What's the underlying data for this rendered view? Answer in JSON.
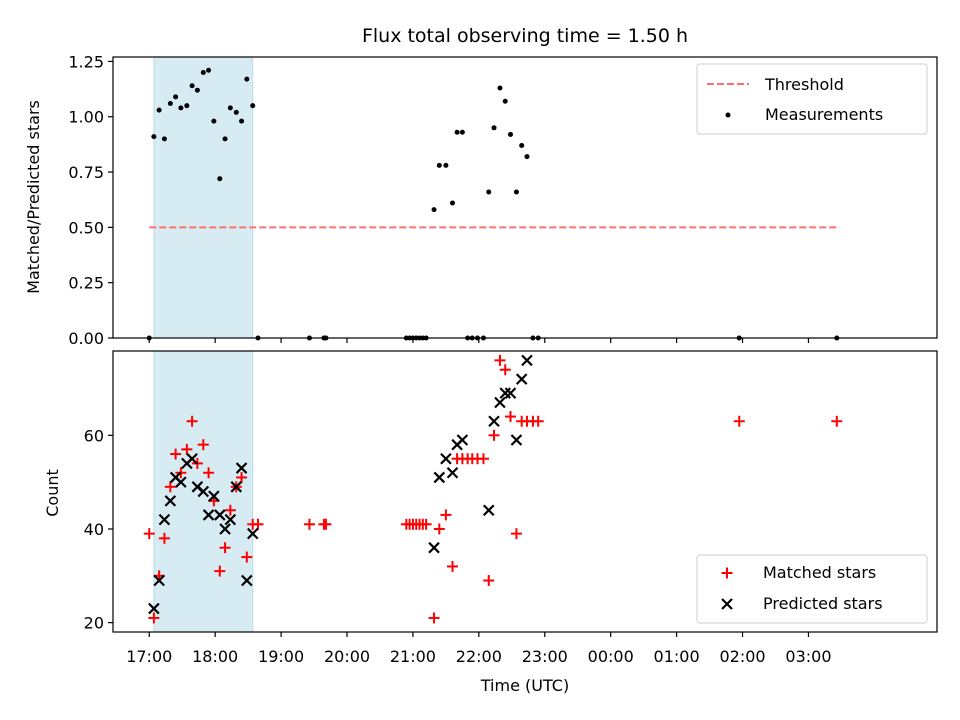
{
  "figure_title": "Flux total observing time = 1.50 h",
  "colors": {
    "threshold": "#ff6f6f",
    "measurements": "#000000",
    "matched": "#ff0000",
    "predicted": "#000000",
    "span": "#add8e6"
  },
  "chart_data": [
    {
      "type": "scatter",
      "title": "Flux total observing time = 1.50 h",
      "xlabel": "",
      "ylabel": "Matched/Predicted stars",
      "ylim": [
        0,
        1.27
      ],
      "yticks": [
        "0.00",
        "0.25",
        "0.50",
        "0.75",
        "1.00",
        "1.25"
      ],
      "ytick_values": [
        0,
        0.25,
        0.5,
        0.75,
        1.0,
        1.25
      ],
      "xlim_hours": [
        16.45,
        28.95
      ],
      "grid": false,
      "legend_position": "upper right",
      "shaded_span_hours": [
        17.07,
        18.57
      ],
      "threshold": {
        "name": "Threshold",
        "value": 0.5,
        "x_hours": [
          17.0,
          27.47
        ]
      },
      "series": [
        {
          "name": "Measurements",
          "marker": "dot",
          "x_hours": [
            17.0,
            17.07,
            17.15,
            17.23,
            17.32,
            17.4,
            17.48,
            17.57,
            17.65,
            17.73,
            17.82,
            17.9,
            17.98,
            18.07,
            18.15,
            18.23,
            18.32,
            18.4,
            18.48,
            18.57,
            18.65,
            19.43,
            19.65,
            19.68,
            20.9,
            20.95,
            21.0,
            21.05,
            21.1,
            21.15,
            21.2,
            21.32,
            21.4,
            21.5,
            21.6,
            21.67,
            21.75,
            21.83,
            21.9,
            21.98,
            22.07,
            22.15,
            22.23,
            22.32,
            22.4,
            22.48,
            22.57,
            22.65,
            22.73,
            22.82,
            22.9,
            25.95,
            27.43
          ],
          "y": [
            0.0,
            0.91,
            1.03,
            0.9,
            1.06,
            1.09,
            1.04,
            1.05,
            1.14,
            1.12,
            1.2,
            1.21,
            0.98,
            0.72,
            0.9,
            1.04,
            1.02,
            0.98,
            1.17,
            1.05,
            0.0,
            0.0,
            0.0,
            0.0,
            0.0,
            0.0,
            0.0,
            0.0,
            0.0,
            0.0,
            0.0,
            0.58,
            0.78,
            0.78,
            0.61,
            0.93,
            0.93,
            0.0,
            0.0,
            0.0,
            0.0,
            0.66,
            0.95,
            1.13,
            1.07,
            0.92,
            0.66,
            0.87,
            0.82,
            0.0,
            0.0,
            0.0,
            0.0
          ]
        }
      ]
    },
    {
      "type": "scatter",
      "xlabel": "Time (UTC)",
      "ylabel": "Count",
      "ylim": [
        18,
        78
      ],
      "yticks": [
        "20",
        "40",
        "60"
      ],
      "ytick_values": [
        20,
        40,
        60
      ],
      "xlim_hours": [
        16.45,
        28.95
      ],
      "xticks": [
        "17:00",
        "18:00",
        "19:00",
        "20:00",
        "21:00",
        "22:00",
        "23:00",
        "00:00",
        "01:00",
        "02:00",
        "03:00"
      ],
      "xtick_hours": [
        17,
        18,
        19,
        20,
        21,
        22,
        23,
        24,
        25,
        26,
        27
      ],
      "grid": false,
      "legend_position": "lower right",
      "shaded_span_hours": [
        17.07,
        18.57
      ],
      "series": [
        {
          "name": "Matched stars",
          "marker": "plus",
          "x_hours": [
            17.0,
            17.07,
            17.15,
            17.23,
            17.32,
            17.4,
            17.48,
            17.57,
            17.65,
            17.73,
            17.82,
            17.9,
            17.98,
            18.07,
            18.15,
            18.23,
            18.32,
            18.4,
            18.48,
            18.57,
            18.65,
            19.43,
            19.65,
            19.68,
            20.9,
            20.95,
            21.0,
            21.05,
            21.1,
            21.15,
            21.2,
            21.32,
            21.4,
            21.5,
            21.6,
            21.67,
            21.75,
            21.83,
            21.9,
            21.98,
            22.07,
            22.15,
            22.23,
            22.32,
            22.4,
            22.48,
            22.57,
            22.65,
            22.73,
            22.82,
            22.9,
            25.95,
            27.43
          ],
          "y": [
            39,
            21,
            30,
            38,
            49,
            56,
            52,
            57,
            63,
            54,
            58,
            52,
            46,
            31,
            36,
            44,
            49,
            51,
            34,
            41,
            41,
            41,
            41,
            41,
            41,
            41,
            41,
            41,
            41,
            41,
            41,
            21,
            40,
            43,
            32,
            55,
            55,
            55,
            55,
            55,
            55,
            29,
            60,
            76,
            74,
            64,
            39,
            63,
            63,
            63,
            63,
            63,
            63
          ]
        },
        {
          "name": "Predicted stars",
          "marker": "x",
          "x_hours": [
            17.07,
            17.15,
            17.23,
            17.32,
            17.4,
            17.48,
            17.57,
            17.65,
            17.73,
            17.82,
            17.9,
            17.98,
            18.07,
            18.15,
            18.23,
            18.32,
            18.4,
            18.48,
            18.57,
            21.32,
            21.4,
            21.5,
            21.6,
            21.67,
            21.75,
            22.15,
            22.23,
            22.32,
            22.4,
            22.48,
            22.57,
            22.65,
            22.73
          ],
          "y": [
            23,
            29,
            42,
            46,
            51,
            50,
            54,
            55,
            49,
            48,
            43,
            47,
            43,
            40,
            42,
            49,
            53,
            29,
            39,
            36,
            51,
            55,
            52,
            58,
            59,
            44,
            63,
            67,
            69,
            69,
            59,
            72,
            76
          ]
        }
      ]
    }
  ]
}
